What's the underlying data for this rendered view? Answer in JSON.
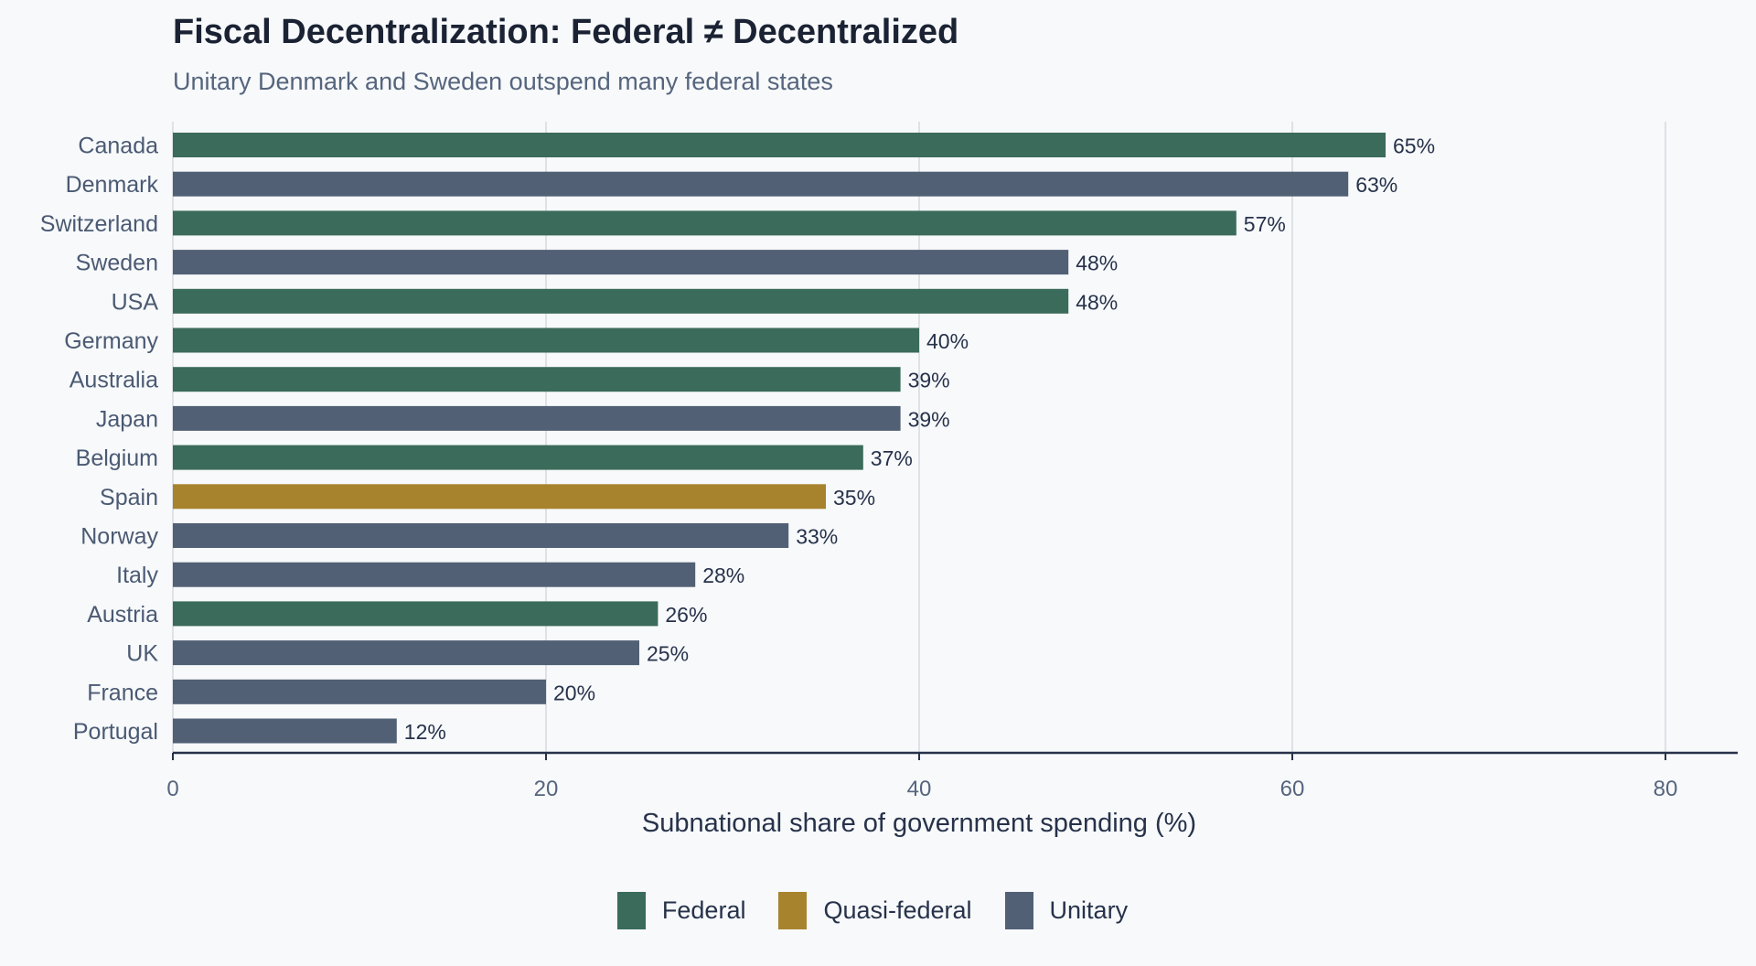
{
  "chart_data": {
    "type": "bar",
    "orientation": "horizontal",
    "title": "Fiscal Decentralization: Federal ≠ Decentralized",
    "subtitle": "Unitary Denmark and Sweden outspend many federal states",
    "xlabel": "Subnational share of government spending (%)",
    "ylabel": "",
    "xlim": [
      0,
      84
    ],
    "xticks": [
      0,
      20,
      40,
      60,
      80
    ],
    "grid": "vertical",
    "legend_position": "bottom-center",
    "categories": [
      "Canada",
      "Denmark",
      "Switzerland",
      "Sweden",
      "USA",
      "Germany",
      "Australia",
      "Japan",
      "Belgium",
      "Spain",
      "Norway",
      "Italy",
      "Austria",
      "UK",
      "France",
      "Portugal"
    ],
    "values": [
      65,
      63,
      57,
      48,
      48,
      40,
      39,
      39,
      37,
      35,
      33,
      28,
      26,
      25,
      20,
      12
    ],
    "value_labels": [
      "65%",
      "63%",
      "57%",
      "48%",
      "48%",
      "40%",
      "39%",
      "39%",
      "37%",
      "35%",
      "33%",
      "28%",
      "26%",
      "25%",
      "20%",
      "12%"
    ],
    "groups": [
      "Federal",
      "Unitary",
      "Federal",
      "Unitary",
      "Federal",
      "Federal",
      "Federal",
      "Unitary",
      "Federal",
      "Quasi-federal",
      "Unitary",
      "Unitary",
      "Federal",
      "Unitary",
      "Unitary",
      "Unitary"
    ],
    "legend": [
      {
        "name": "Federal",
        "color": "#3b6b5a"
      },
      {
        "name": "Quasi-federal",
        "color": "#a8832e"
      },
      {
        "name": "Unitary",
        "color": "#516075"
      }
    ]
  },
  "colors": {
    "background": "#f7f9fb",
    "grid": "#d5d9df",
    "axis": "#27324a",
    "tick_label": "#56657d",
    "category_label": "#4b5a73",
    "value_label": "#27324a"
  }
}
